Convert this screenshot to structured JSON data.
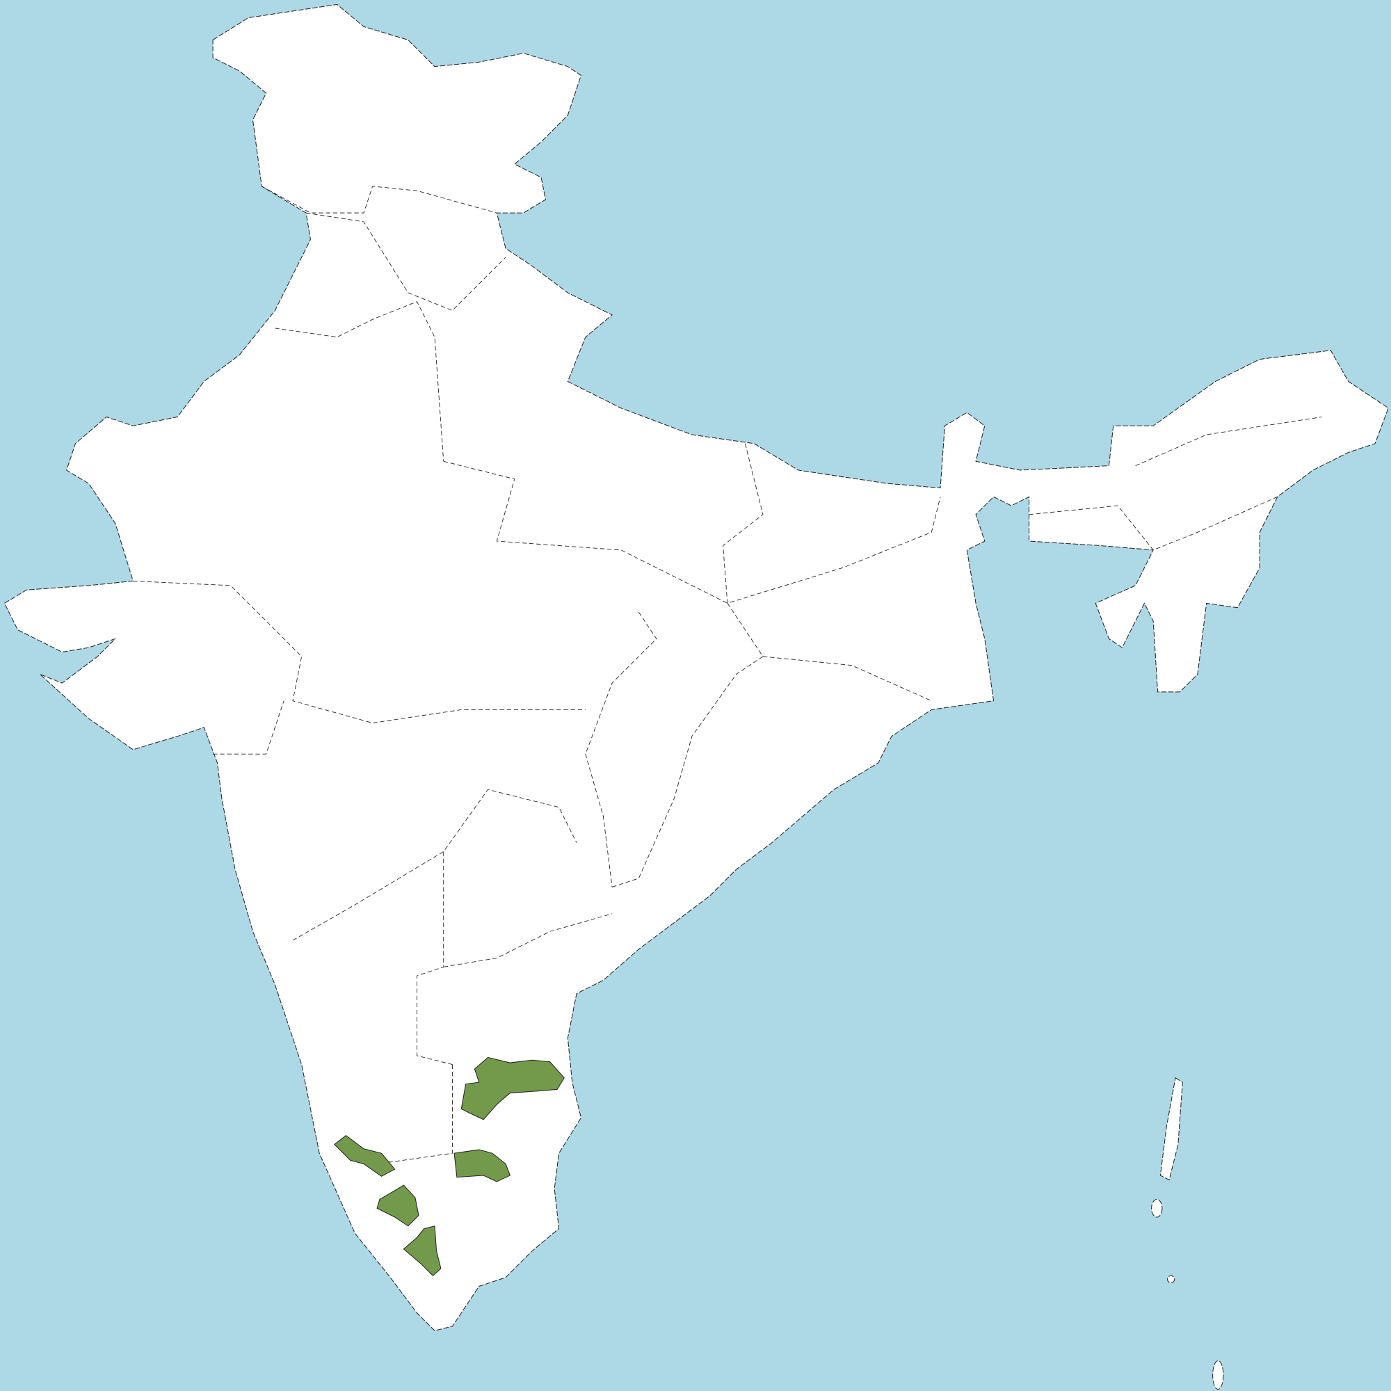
{
  "map": {
    "colors": {
      "sea": "#add8e6",
      "land": "#ffffff",
      "highlight": "#739a4b",
      "border": "#222222"
    },
    "highlighted_region_count": 5
  }
}
